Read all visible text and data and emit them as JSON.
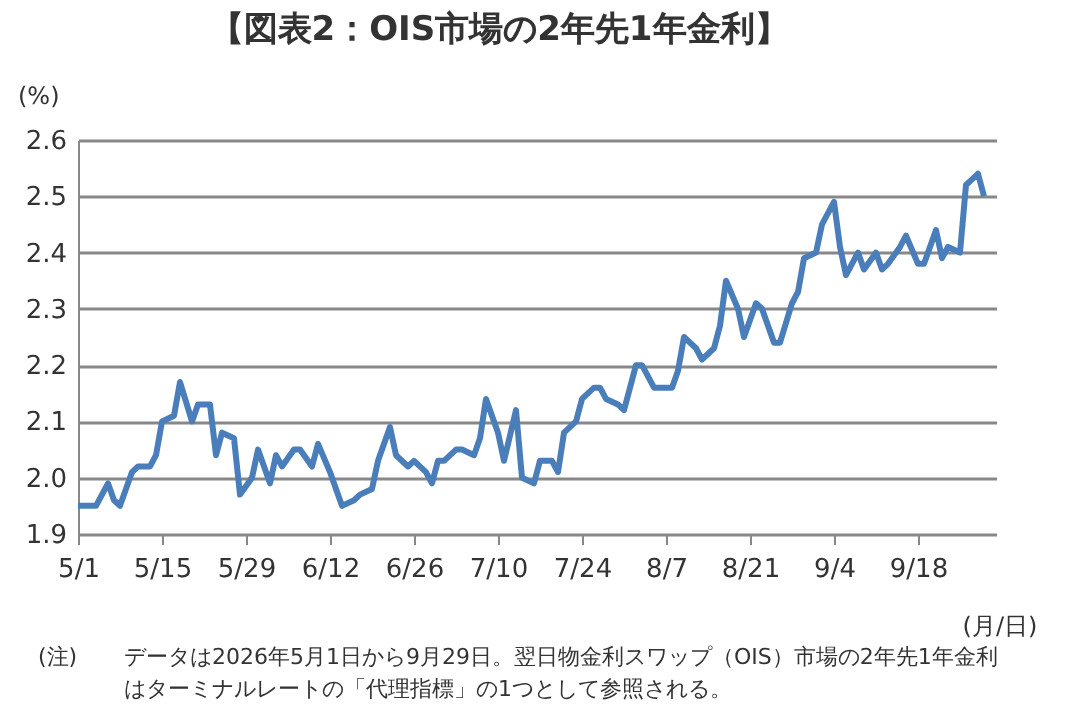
{
  "chart_data": {
    "type": "line",
    "title": "【図表2：OIS市場の2年先1年金利】",
    "ylabel": "(%)",
    "xlabel": "(月/日)",
    "annotations": [
      "(注)",
      "データは2026年5月1日から9月29日。翌日物金利スワップ（OIS）市場の2年先1年金利",
      "はターミナルレートの「代理指標」の1つとして参照される。"
    ],
    "x": [
      "2026-05-01",
      "2026-05-04",
      "2026-05-06",
      "2026-05-07",
      "2026-05-08",
      "2026-05-10",
      "2026-05-11",
      "2026-05-13",
      "2026-05-14",
      "2026-05-15",
      "2026-05-17",
      "2026-05-18",
      "2026-05-20",
      "2026-05-21",
      "2026-05-23",
      "2026-05-24",
      "2026-05-25",
      "2026-05-27",
      "2026-05-28",
      "2026-05-30",
      "2026-05-31",
      "2026-06-02",
      "2026-06-03",
      "2026-06-04",
      "2026-06-06",
      "2026-06-07",
      "2026-06-09",
      "2026-06-10",
      "2026-06-12",
      "2026-06-13",
      "2026-06-14",
      "2026-06-16",
      "2026-06-17",
      "2026-06-19",
      "2026-06-20",
      "2026-06-22",
      "2026-06-23",
      "2026-06-25",
      "2026-06-26",
      "2026-06-28",
      "2026-06-29",
      "2026-06-30",
      "2026-07-01",
      "2026-07-03",
      "2026-07-04",
      "2026-07-06",
      "2026-07-07",
      "2026-07-08",
      "2026-07-10",
      "2026-07-11",
      "2026-07-13",
      "2026-07-14",
      "2026-07-16",
      "2026-07-17",
      "2026-07-19",
      "2026-07-20",
      "2026-07-21",
      "2026-07-23",
      "2026-07-24",
      "2026-07-26",
      "2026-07-27",
      "2026-07-28",
      "2026-07-30",
      "2026-07-31",
      "2026-08-02",
      "2026-08-03",
      "2026-08-05",
      "2026-08-06",
      "2026-08-08",
      "2026-08-09",
      "2026-08-10",
      "2026-08-12",
      "2026-08-13",
      "2026-08-15",
      "2026-08-16",
      "2026-08-17",
      "2026-08-19",
      "2026-08-20",
      "2026-08-22",
      "2026-08-23",
      "2026-08-25",
      "2026-08-26",
      "2026-08-28",
      "2026-08-29",
      "2026-08-30",
      "2026-09-01",
      "2026-09-02",
      "2026-09-04",
      "2026-09-05",
      "2026-09-06",
      "2026-09-08",
      "2026-09-09",
      "2026-09-11",
      "2026-09-12",
      "2026-09-13",
      "2026-09-15",
      "2026-09-16",
      "2026-09-18",
      "2026-09-19",
      "2026-09-21",
      "2026-09-22",
      "2026-09-23",
      "2026-09-25",
      "2026-09-26",
      "2026-09-27",
      "2026-09-28",
      "2026-09-29"
    ],
    "series": [
      {
        "color": "#4a7ebb",
        "values": [
          1.95,
          1.95,
          1.99,
          1.96,
          1.95,
          2.01,
          2.02,
          2.02,
          2.04,
          2.1,
          2.11,
          2.17,
          2.1,
          2.13,
          2.13,
          2.04,
          2.08,
          2.07,
          1.97,
          2.0,
          2.05,
          1.99,
          2.04,
          2.02,
          2.05,
          2.05,
          2.02,
          2.06,
          2.01,
          1.98,
          1.95,
          1.96,
          1.97,
          1.98,
          2.03,
          2.09,
          2.04,
          2.02,
          2.03,
          2.01,
          1.99,
          2.03,
          2.03,
          2.05,
          2.05,
          2.04,
          2.07,
          2.14,
          2.08,
          2.03,
          2.12,
          2.0,
          1.99,
          2.03,
          2.03,
          2.01,
          2.08,
          2.1,
          2.14,
          2.16,
          2.16,
          2.14,
          2.13,
          2.12,
          2.2,
          2.2,
          2.16,
          2.16,
          2.16,
          2.19,
          2.25,
          2.23,
          2.21,
          2.23,
          2.27,
          2.35,
          2.3,
          2.25,
          2.31,
          2.3,
          2.24,
          2.24,
          2.31,
          2.33,
          2.39,
          2.4,
          2.45,
          2.49,
          2.41,
          2.36,
          2.4,
          2.37,
          2.4,
          2.37,
          2.38,
          2.41,
          2.43,
          2.38,
          2.38,
          2.44,
          2.39,
          2.41,
          2.4,
          2.52,
          2.53,
          2.54,
          2.5
        ]
      }
    ],
    "xlim": [
      "2026-05-01",
      "2026-10-01"
    ],
    "xticks": [
      {
        "value": "2026-05-01",
        "label": "5/1"
      },
      {
        "value": "2026-05-15",
        "label": "5/15"
      },
      {
        "value": "2026-05-29",
        "label": "5/29"
      },
      {
        "value": "2026-06-12",
        "label": "6/12"
      },
      {
        "value": "2026-06-26",
        "label": "6/26"
      },
      {
        "value": "2026-07-10",
        "label": "7/10"
      },
      {
        "value": "2026-07-24",
        "label": "7/24"
      },
      {
        "value": "2026-08-07",
        "label": "8/7"
      },
      {
        "value": "2026-08-21",
        "label": "8/21"
      },
      {
        "value": "2026-09-04",
        "label": "9/4"
      },
      {
        "value": "2026-09-18",
        "label": "9/18"
      }
    ],
    "ylim": [
      1.9,
      2.6
    ],
    "yticks": [
      {
        "value": 1.9,
        "label": "1.9"
      },
      {
        "value": 2.0,
        "label": "2.0"
      },
      {
        "value": 2.1,
        "label": "2.1"
      },
      {
        "value": 2.2,
        "label": "2.2"
      },
      {
        "value": 2.3,
        "label": "2.3"
      },
      {
        "value": 2.4,
        "label": "2.4"
      },
      {
        "value": 2.5,
        "label": "2.5"
      },
      {
        "value": 2.6,
        "label": "2.6"
      }
    ],
    "grid": "y",
    "marker": "none",
    "line_style": "solid"
  }
}
